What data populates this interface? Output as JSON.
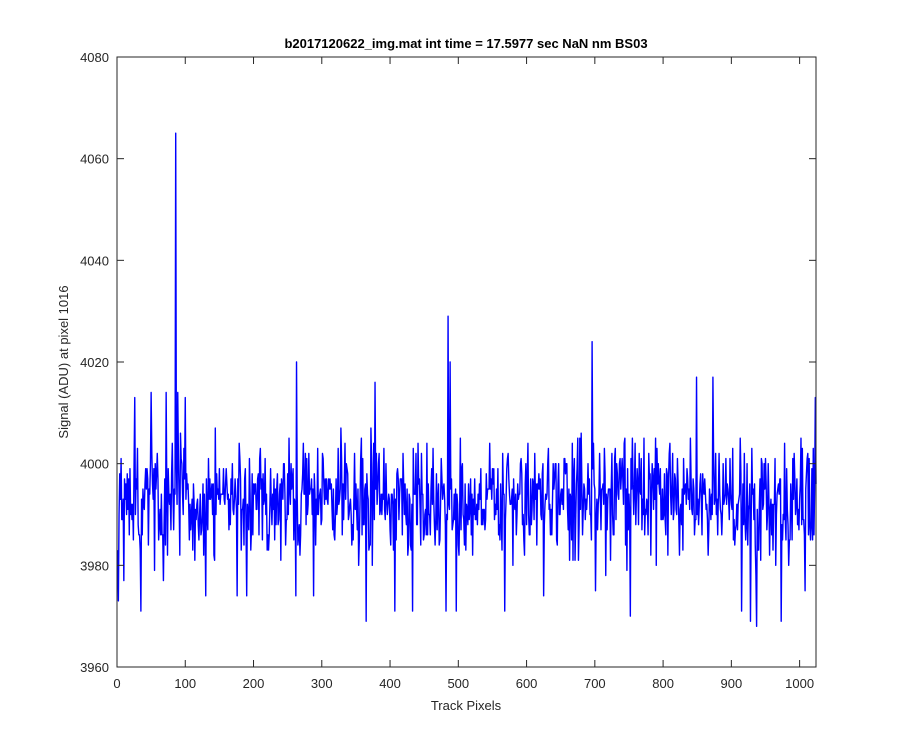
{
  "chart_data": {
    "type": "line",
    "title": "b2017120622_img.mat int time = 17.5977 sec  NaN nm BS03",
    "xlabel": "Track Pixels",
    "ylabel": "Signal (ADU) at pixel 1016",
    "xlim": [
      0,
      1024
    ],
    "ylim": [
      3960,
      4080
    ],
    "xticks": [
      0,
      100,
      200,
      300,
      400,
      500,
      600,
      700,
      800,
      900,
      1000
    ],
    "yticks": [
      3960,
      3980,
      4000,
      4020,
      4040,
      4060,
      4080
    ],
    "xtick_labels": [
      "0",
      "100",
      "200",
      "300",
      "400",
      "500",
      "600",
      "700",
      "800",
      "900",
      "1000"
    ],
    "ytick_labels": [
      "3960",
      "3980",
      "4000",
      "4020",
      "4040",
      "4060",
      "4080"
    ],
    "grid": false,
    "line_color": "#0000ff",
    "series": [
      {
        "description": "Signal profile approximated from the plot (one point per pixel, 1..1024); baseline ~3993 ADU with ~+/-10 ADU noise",
        "noise_level": 3993,
        "x_start": 1,
        "count": 1024,
        "key_points": [
          [
            1,
            3983
          ],
          [
            2,
            3973
          ],
          [
            6,
            4001
          ],
          [
            10,
            3977
          ],
          [
            14,
            3990
          ],
          [
            26,
            4013
          ],
          [
            35,
            3971
          ],
          [
            50,
            4014
          ],
          [
            55,
            3979
          ],
          [
            68,
            3977
          ],
          [
            72,
            4014
          ],
          [
            86,
            4065
          ],
          [
            87,
            4000
          ],
          [
            89,
            4014
          ],
          [
            92,
            3982
          ],
          [
            100,
            4013
          ],
          [
            130,
            3974
          ],
          [
            176,
            3974
          ],
          [
            180,
            4001
          ],
          [
            190,
            3974
          ],
          [
            262,
            3974
          ],
          [
            263,
            4020
          ],
          [
            288,
            3974
          ],
          [
            365,
            3969
          ],
          [
            378,
            4016
          ],
          [
            407,
            3971
          ],
          [
            433,
            3971
          ],
          [
            482,
            3971
          ],
          [
            485,
            4029
          ],
          [
            488,
            4020
          ],
          [
            497,
            3971
          ],
          [
            568,
            3971
          ],
          [
            625,
            3974
          ],
          [
            696,
            4024
          ],
          [
            701,
            3975
          ],
          [
            752,
            3970
          ],
          [
            849,
            4017
          ],
          [
            873,
            4017
          ],
          [
            915,
            3971
          ],
          [
            928,
            3969
          ],
          [
            937,
            3968
          ],
          [
            973,
            3969
          ],
          [
            1008,
            3975
          ],
          [
            1023,
            4013
          ],
          [
            1024,
            3996
          ]
        ]
      }
    ]
  }
}
